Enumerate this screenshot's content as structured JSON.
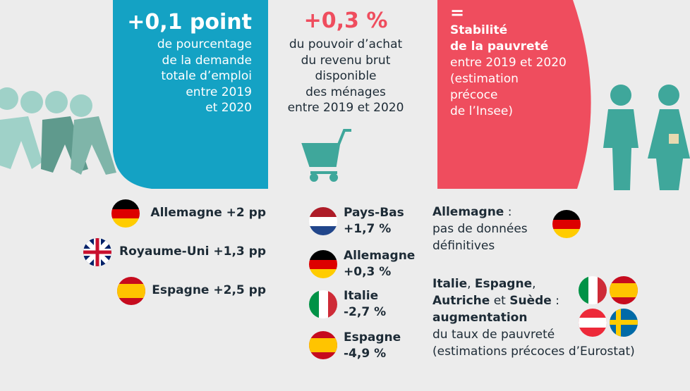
{
  "left_panel": {
    "headline": "+0,1 point",
    "lines": [
      "de pourcentage",
      "de la demande",
      "totale d’emploi",
      "entre 2019",
      "et 2020"
    ]
  },
  "middle_panel": {
    "headline": "+0,3 %",
    "lines": [
      "du pouvoir d’achat",
      "du revenu brut",
      "disponible",
      "des ménages",
      "entre 2019 et 2020"
    ]
  },
  "right_panel": {
    "headline": "=",
    "bold_lines": [
      "Stabilité",
      "de la pauvreté"
    ],
    "lines": [
      "entre 2019 et 2020",
      "(estimation",
      "précoce",
      "de l’Insee)"
    ]
  },
  "left_countries": [
    "Allemagne +2 pp",
    "Royaume-Uni +1,3 pp",
    "Espagne +2,5 pp"
  ],
  "middle_countries": [
    {
      "country": "Pays-Bas",
      "value": "+1,7 %"
    },
    {
      "country": "Allemagne",
      "value": "+0,3 %"
    },
    {
      "country": "Italie",
      "value": "-2,7 %"
    },
    {
      "country": "Espagne",
      "value": "-4,9 %"
    }
  ],
  "right_notes": {
    "germany": [
      [
        {
          "text": "Allemagne",
          "bold": true
        },
        {
          "text": " :",
          "bold": false
        }
      ],
      [
        {
          "text": "pas de données",
          "bold": false
        }
      ],
      [
        {
          "text": "définitives",
          "bold": false
        }
      ]
    ],
    "others": [
      [
        {
          "text": "Italie",
          "bold": true
        },
        {
          "text": ", ",
          "bold": false
        },
        {
          "text": "Espagne",
          "bold": true
        },
        {
          "text": ",",
          "bold": false
        }
      ],
      [
        {
          "text": "Autriche",
          "bold": true
        },
        {
          "text": " et ",
          "bold": false
        },
        {
          "text": "Suède",
          "bold": true
        },
        {
          "text": " :",
          "bold": false
        }
      ],
      [
        {
          "text": "augmentation",
          "bold": true
        }
      ],
      [
        {
          "text": "du taux de pauvreté",
          "bold": false
        }
      ],
      [
        {
          "text": "(estimations précoces d’Eurostat)",
          "bold": false
        }
      ]
    ]
  }
}
